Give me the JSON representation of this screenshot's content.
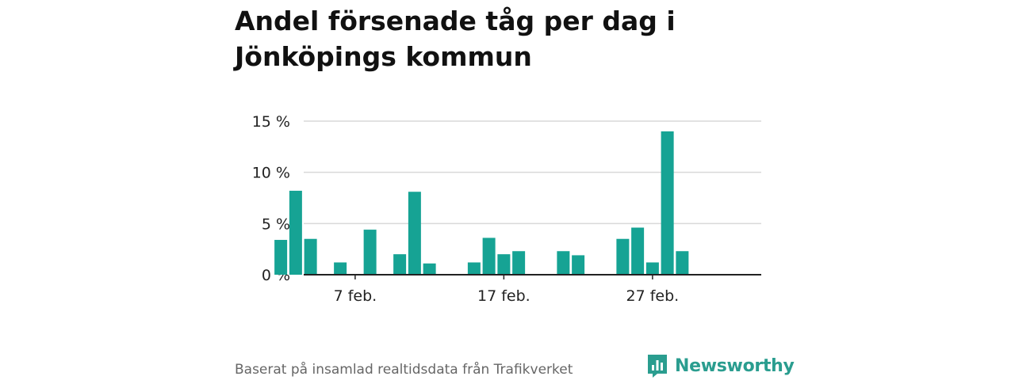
{
  "header": {
    "title": "Andel försenade tåg per dag i Jönköpings kommun"
  },
  "footer": {
    "source": "Baserat på insamlad realtidsdata från Trafikverket"
  },
  "brand": {
    "name": "Newsworthy",
    "color": "#2a9d8f"
  },
  "chart_data": {
    "type": "bar",
    "title": "Andel försenade tåg per dag i Jönköpings kommun",
    "xlabel": "",
    "ylabel": "",
    "bar_color": "#16a394",
    "ylim": [
      0,
      15
    ],
    "yticks": [
      0,
      5,
      10,
      15
    ],
    "ytick_labels": [
      "0 %",
      "5 %",
      "10 %",
      "15 %"
    ],
    "xticks": [
      {
        "day": 7,
        "label": "7 feb."
      },
      {
        "day": 17,
        "label": "17 feb."
      },
      {
        "day": 27,
        "label": "27 feb."
      }
    ],
    "x_range": [
      0,
      31
    ],
    "grid": true,
    "days": [
      2,
      3,
      4,
      6,
      8,
      10,
      11,
      12,
      15,
      16,
      17,
      18,
      21,
      22,
      25,
      26,
      27,
      28,
      29
    ],
    "values": [
      3.4,
      8.2,
      3.5,
      1.2,
      4.4,
      2.0,
      8.1,
      1.1,
      1.2,
      3.6,
      2.0,
      2.3,
      2.3,
      1.9,
      3.5,
      4.6,
      1.2,
      14.0,
      2.3
    ]
  }
}
